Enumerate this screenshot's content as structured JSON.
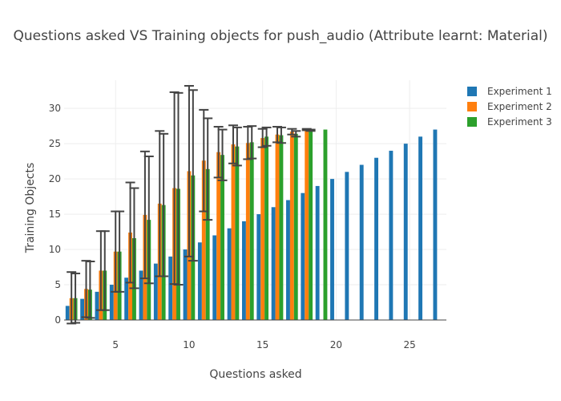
{
  "chart_data": {
    "type": "bar",
    "title": "Questions asked VS Training objects for push_audio (Attribute learnt: Material)",
    "xlabel": "Questions asked",
    "ylabel": "Training Objects",
    "xlim": [
      1.5,
      27.5
    ],
    "ylim": [
      0,
      34
    ],
    "xticks": [
      5,
      10,
      15,
      20,
      25
    ],
    "yticks": [
      0,
      5,
      10,
      15,
      20,
      25,
      30
    ],
    "grid": true,
    "legend_position": "top-right",
    "series": [
      {
        "name": "Experiment 1",
        "color": "#1f77b4",
        "x": [
          2,
          3,
          4,
          5,
          6,
          7,
          8,
          9,
          10,
          11,
          12,
          13,
          14,
          15,
          16,
          17,
          18,
          19,
          20,
          21,
          22,
          23,
          24,
          25,
          26,
          27
        ],
        "values": [
          2,
          3,
          4,
          5,
          6,
          7,
          8,
          9,
          10,
          11,
          12,
          13,
          14,
          15,
          16,
          17,
          18,
          19,
          20,
          21,
          22,
          23,
          24,
          25,
          26,
          27
        ]
      },
      {
        "name": "Experiment 2",
        "color": "#ff7f0e",
        "x": [
          2,
          3,
          4,
          5,
          6,
          7,
          8,
          9,
          10,
          11,
          12,
          13,
          14,
          15,
          16,
          17,
          18
        ],
        "values": [
          3.1,
          4.4,
          7,
          9.7,
          12.4,
          14.9,
          16.5,
          18.7,
          21.1,
          22.6,
          23.8,
          24.9,
          25.1,
          25.8,
          26.3,
          26.7,
          27
        ],
        "error": [
          3.7,
          4,
          5.6,
          5.7,
          7.1,
          9,
          10.3,
          13.6,
          12.1,
          7.2,
          3.6,
          2.7,
          2.3,
          1.3,
          1.1,
          0.4,
          0.1
        ]
      },
      {
        "name": "Experiment 3",
        "color": "#2ca02c",
        "x": [
          2,
          3,
          4,
          5,
          6,
          7,
          8,
          9,
          10,
          11,
          12,
          13,
          14,
          15,
          16,
          17,
          18,
          19
        ],
        "values": [
          3.1,
          4.3,
          7,
          9.7,
          11.6,
          14.2,
          16.3,
          18.6,
          20.5,
          21.4,
          23.4,
          24.6,
          25.2,
          26,
          26.2,
          26.4,
          26.9,
          27
        ],
        "error": [
          3.5,
          4,
          5.6,
          5.7,
          7.1,
          9,
          10.1,
          13.6,
          12.1,
          7.2,
          3.6,
          2.7,
          2.3,
          1.3,
          1.1,
          0.4,
          0.1,
          0
        ]
      }
    ]
  }
}
